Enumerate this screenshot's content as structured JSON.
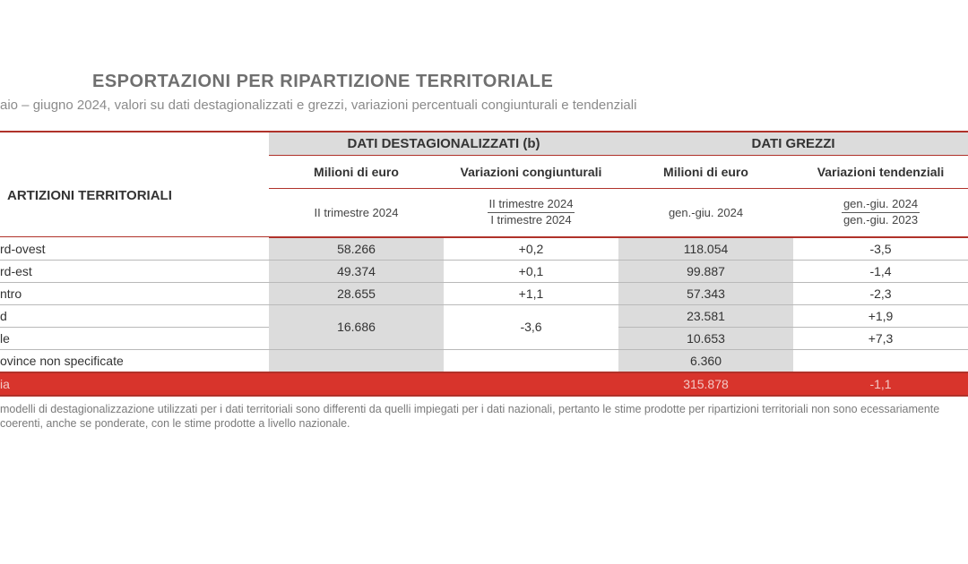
{
  "title": "ESPORTAZIONI PER RIPARTIZIONE TERRITORIALE",
  "subtitle": "aio – giugno 2024, valori su dati destagionalizzati e grezzi, variazioni percentuali congiunturali e tendenziali",
  "headers": {
    "group_destag": "DATI DESTAGIONALIZZATI (b)",
    "group_grezzi": "DATI GREZZI",
    "rowlabel": "ARTIZIONI TERRITORIALI",
    "col_mln_eur": "Milioni di euro",
    "col_var_cong": "Variazioni congiunturali",
    "col_var_tend": "Variazioni tendenziali",
    "sub_trim2": "II trimestre 2024",
    "sub_frac_trim_num": "II trimestre 2024",
    "sub_frac_trim_den": "I trimestre 2024",
    "sub_gen_giu": "gen.-giu. 2024",
    "sub_frac_gg_num": "gen.-giu. 2024",
    "sub_frac_gg_den": "gen.-giu. 2023"
  },
  "rows": [
    {
      "label": "rd-ovest",
      "destag_mln": "58.266",
      "destag_var": "+0,2",
      "grezzi_mln": "118.054",
      "grezzi_var": "-3,5"
    },
    {
      "label": "rd-est",
      "destag_mln": "49.374",
      "destag_var": "+0,1",
      "grezzi_mln": "99.887",
      "grezzi_var": "-1,4"
    },
    {
      "label": "ntro",
      "destag_mln": "28.655",
      "destag_var": "+1,1",
      "grezzi_mln": "57.343",
      "grezzi_var": "-2,3"
    }
  ],
  "sudisole": {
    "sud_label": "d",
    "isole_label": "le",
    "destag_mln": "16.686",
    "destag_var": "-3,6",
    "sud_grezzi_mln": "23.581",
    "sud_grezzi_var": "+1,9",
    "isole_grezzi_mln": "10.653",
    "isole_grezzi_var": "+7,3"
  },
  "prov_non_spec": {
    "label": "ovince non specificate",
    "grezzi_mln": "6.360"
  },
  "total": {
    "label": "ia",
    "grezzi_mln": "315.878",
    "grezzi_var": "-1,1"
  },
  "footnote": "modelli di destagionalizzazione utilizzati per i dati territoriali sono differenti da quelli impiegati per i dati nazionali, pertanto le stime prodotte per ripartizioni territoriali non sono ecessariamente coerenti, anche se ponderate, con le stime prodotte a livello nazionale.",
  "colors": {
    "accent_red": "#b0322a",
    "total_bg": "#d8342c",
    "shade_bg": "#dcdcdc",
    "text_grey": "#6f6f6f"
  }
}
